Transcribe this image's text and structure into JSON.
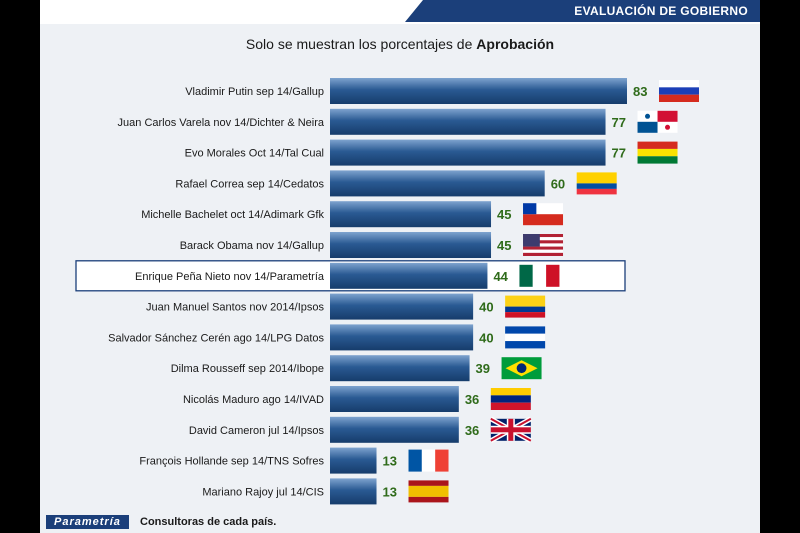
{
  "header": {
    "title": "EVALUACIÓN DE GOBIERNO"
  },
  "subtitle": {
    "prefix": "Solo se muestran los porcentajes de ",
    "emphasis": "Aprobación"
  },
  "footer": {
    "logo": "Parametría",
    "note": "Consultoras de cada país."
  },
  "colors": {
    "bar": "#1f4e86",
    "bar_light": "#5d86b8",
    "value_text": "#2f6b1a",
    "highlight_border": "#1b3f7a",
    "header_bg": "#1b3f7a"
  },
  "chart_data": {
    "type": "bar",
    "orientation": "horizontal",
    "title": "Solo se muestran los porcentajes de Aprobación",
    "xlim": [
      0,
      100
    ],
    "categories": [
      "Vladimir Putin sep 14/Gallup",
      "Juan Carlos Varela nov 14/Dichter & Neira",
      "Evo Morales Oct 14/Tal Cual",
      "Rafael Correa sep 14/Cedatos",
      "Michelle Bachelet oct 14/Adimark Gfk",
      "Barack Obama nov 14/Gallup",
      "Enrique Peña Nieto nov 14/Parametría",
      "Juan Manuel Santos nov 2014/Ipsos",
      "Salvador Sánchez Cerén ago 14/LPG Datos",
      "Dilma Rousseff sep 2014/Ibope",
      "Nicolás Maduro ago 14/IVAD",
      "David Cameron jul 14/Ipsos",
      "François Hollande sep 14/TNS Sofres",
      "Mariano Rajoy  jul 14/CIS"
    ],
    "values": [
      83,
      77,
      77,
      60,
      45,
      45,
      44,
      40,
      40,
      39,
      36,
      36,
      13,
      13
    ],
    "flags": [
      "russia-flag",
      "panama-flag",
      "bolivia-flag",
      "ecuador-flag",
      "chile-flag",
      "usa-flag",
      "mexico-flag",
      "colombia-flag",
      "el-salvador-flag",
      "brazil-flag",
      "venezuela-flag",
      "uk-flag",
      "france-flag",
      "spain-flag"
    ],
    "highlight_category": "Enrique Peña Nieto nov 14/Parametría",
    "grid": false
  }
}
